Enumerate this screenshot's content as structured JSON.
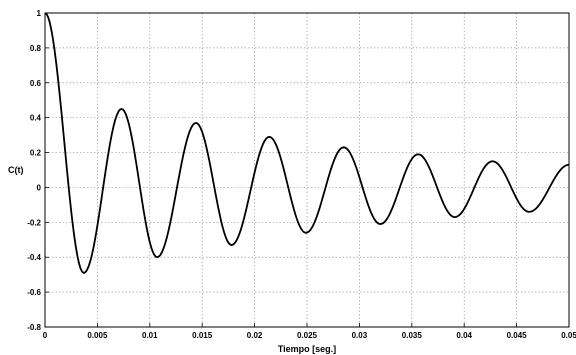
{
  "chart_data": {
    "type": "line",
    "title": "",
    "xlabel": "Tiempo [seg.]",
    "ylabel": "C(t)",
    "xlim": [
      0,
      0.05
    ],
    "ylim": [
      -0.8,
      1
    ],
    "grid": true,
    "xticks": [
      0,
      0.005,
      0.01,
      0.015,
      0.02,
      0.025,
      0.03,
      0.035,
      0.04,
      0.045,
      0.05
    ],
    "xtick_labels": [
      "0",
      "0.005",
      "0.01",
      "0.015",
      "0.02",
      "0.025",
      "0.03",
      "0.035",
      "0.04",
      "0.045",
      "0.05"
    ],
    "yticks": [
      -0.8,
      -0.6,
      -0.4,
      -0.2,
      0,
      0.2,
      0.4,
      0.6,
      0.8,
      1
    ],
    "ytick_labels": [
      "-0.8",
      "-0.6",
      "-0.4",
      "-0.2",
      "0",
      "0.2",
      "0.4",
      "0.6",
      "0.8",
      "1"
    ],
    "series": [
      {
        "color": "#000000",
        "x": [
          0,
          0.0037,
          0.0073,
          0.0107,
          0.0144,
          0.0178,
          0.0214,
          0.0249,
          0.0285,
          0.032,
          0.0356,
          0.0391,
          0.0427,
          0.0462,
          0.05
        ],
        "y": [
          1,
          -0.49,
          0.45,
          -0.4,
          0.37,
          -0.33,
          0.29,
          -0.26,
          0.23,
          -0.21,
          0.19,
          -0.17,
          0.15,
          -0.14,
          0.13
        ]
      }
    ]
  }
}
